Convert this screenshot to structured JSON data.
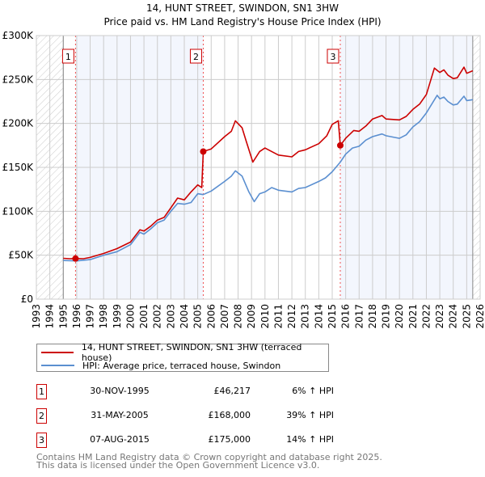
{
  "chart_data": {
    "type": "line",
    "title": "14, HUNT STREET, SWINDON, SN1 3HW",
    "subtitle": "Price paid vs. HM Land Registry's House Price Index (HPI)",
    "xlim": [
      1993,
      2026
    ],
    "ylim": [
      0,
      300000
    ],
    "x_ticks": [
      "1993",
      "1994",
      "1995",
      "1996",
      "1997",
      "1998",
      "1999",
      "2000",
      "2001",
      "2002",
      "2003",
      "2004",
      "2005",
      "2006",
      "2007",
      "2008",
      "2009",
      "2010",
      "2011",
      "2012",
      "2013",
      "2014",
      "2015",
      "2016",
      "2017",
      "2018",
      "2019",
      "2020",
      "2021",
      "2022",
      "2023",
      "2024",
      "2025",
      "2026"
    ],
    "y_ticks": [
      {
        "v": 0,
        "label": "£0"
      },
      {
        "v": 50000,
        "label": "£50K"
      },
      {
        "v": 100000,
        "label": "£100K"
      },
      {
        "v": 150000,
        "label": "£150K"
      },
      {
        "v": 200000,
        "label": "£200K"
      },
      {
        "v": 250000,
        "label": "£250K"
      },
      {
        "v": 300000,
        "label": "£300K"
      }
    ],
    "grid": true,
    "data_range": [
      1995,
      2025.45
    ],
    "series": [
      {
        "name": "14, HUNT STREET, SWINDON, SN1 3HW (terraced house)",
        "color": "#cc0000",
        "points": [
          [
            1995,
            46500
          ],
          [
            1995.5,
            46000
          ],
          [
            1995.91,
            46217
          ],
          [
            1996.5,
            46000
          ],
          [
            1997,
            47500
          ],
          [
            1998,
            52000
          ],
          [
            1999,
            57500
          ],
          [
            2000,
            65000
          ],
          [
            2000.7,
            79000
          ],
          [
            2001,
            77500
          ],
          [
            2001.5,
            83000
          ],
          [
            2002,
            90000
          ],
          [
            2002.5,
            93000
          ],
          [
            2003,
            104000
          ],
          [
            2003.5,
            115000
          ],
          [
            2004,
            113000
          ],
          [
            2004.5,
            122000
          ],
          [
            2005,
            130000
          ],
          [
            2005.3,
            127000
          ],
          [
            2005.41,
            168000
          ],
          [
            2006,
            171000
          ],
          [
            2007,
            185000
          ],
          [
            2007.5,
            191000
          ],
          [
            2007.8,
            203000
          ],
          [
            2008.3,
            195000
          ],
          [
            2008.6,
            180000
          ],
          [
            2009.1,
            156000
          ],
          [
            2009.6,
            168000
          ],
          [
            2010,
            172000
          ],
          [
            2010.5,
            168000
          ],
          [
            2011,
            164000
          ],
          [
            2012,
            162000
          ],
          [
            2012.5,
            168000
          ],
          [
            2013,
            170000
          ],
          [
            2014,
            177000
          ],
          [
            2014.6,
            186000
          ],
          [
            2015,
            199000
          ],
          [
            2015.45,
            203000
          ],
          [
            2015.6,
            175000
          ],
          [
            2016,
            183000
          ],
          [
            2016.6,
            192000
          ],
          [
            2017,
            191000
          ],
          [
            2017.5,
            197000
          ],
          [
            2018,
            205000
          ],
          [
            2018.7,
            209000
          ],
          [
            2019,
            205000
          ],
          [
            2020,
            204000
          ],
          [
            2020.5,
            208000
          ],
          [
            2021,
            216000
          ],
          [
            2021.5,
            222000
          ],
          [
            2022,
            233000
          ],
          [
            2022.6,
            263000
          ],
          [
            2023,
            258000
          ],
          [
            2023.3,
            261000
          ],
          [
            2023.6,
            255000
          ],
          [
            2024,
            251000
          ],
          [
            2024.3,
            252000
          ],
          [
            2024.8,
            264000
          ],
          [
            2025,
            257000
          ],
          [
            2025.45,
            260000
          ]
        ]
      },
      {
        "name": "HPI: Average price, terraced house, Swindon",
        "color": "#5b8fd0",
        "points": [
          [
            1995,
            44000
          ],
          [
            1996,
            43500
          ],
          [
            1997,
            45000
          ],
          [
            1998,
            50000
          ],
          [
            1999,
            54000
          ],
          [
            2000,
            62000
          ],
          [
            2000.7,
            76000
          ],
          [
            2001,
            74000
          ],
          [
            2001.5,
            80000
          ],
          [
            2002,
            87000
          ],
          [
            2002.5,
            90000
          ],
          [
            2003,
            100000
          ],
          [
            2003.5,
            109000
          ],
          [
            2004,
            108000
          ],
          [
            2004.5,
            110000
          ],
          [
            2005,
            120000
          ],
          [
            2005.4,
            119000
          ],
          [
            2006,
            123000
          ],
          [
            2007,
            134000
          ],
          [
            2007.5,
            140000
          ],
          [
            2007.8,
            146000
          ],
          [
            2008.3,
            140000
          ],
          [
            2008.8,
            122000
          ],
          [
            2009.2,
            111000
          ],
          [
            2009.6,
            120000
          ],
          [
            2010,
            122000
          ],
          [
            2010.5,
            127000
          ],
          [
            2011,
            124000
          ],
          [
            2012,
            122000
          ],
          [
            2012.5,
            126000
          ],
          [
            2013,
            127000
          ],
          [
            2014,
            134000
          ],
          [
            2014.5,
            138000
          ],
          [
            2015,
            145000
          ],
          [
            2015.6,
            156000
          ],
          [
            2016,
            165000
          ],
          [
            2016.5,
            172000
          ],
          [
            2017,
            174000
          ],
          [
            2017.5,
            181000
          ],
          [
            2018,
            185000
          ],
          [
            2018.7,
            188000
          ],
          [
            2019,
            186000
          ],
          [
            2020,
            183000
          ],
          [
            2020.5,
            187000
          ],
          [
            2021,
            196000
          ],
          [
            2021.5,
            202000
          ],
          [
            2022,
            212000
          ],
          [
            2022.8,
            232000
          ],
          [
            2023,
            228000
          ],
          [
            2023.3,
            230000
          ],
          [
            2023.6,
            225000
          ],
          [
            2024,
            221000
          ],
          [
            2024.3,
            222000
          ],
          [
            2024.8,
            231000
          ],
          [
            2025,
            226000
          ],
          [
            2025.45,
            227000
          ]
        ]
      }
    ],
    "sales": [
      {
        "id": "1",
        "x": 1995.91,
        "y": 46217
      },
      {
        "id": "2",
        "x": 2005.41,
        "y": 168000
      },
      {
        "id": "3",
        "x": 2015.6,
        "y": 175000
      }
    ]
  },
  "legend": {
    "property": "14, HUNT STREET, SWINDON, SN1 3HW (terraced house)",
    "hpi": "HPI: Average price, terraced house, Swindon",
    "property_color": "#cc0000",
    "hpi_color": "#5b8fd0"
  },
  "transactions": [
    {
      "id": "1",
      "date": "30-NOV-1995",
      "price": "£46,217",
      "hpi": "6% ↑ HPI"
    },
    {
      "id": "2",
      "date": "31-MAY-2005",
      "price": "£168,000",
      "hpi": "39% ↑ HPI"
    },
    {
      "id": "3",
      "date": "07-AUG-2015",
      "price": "£175,000",
      "hpi": "14% ↑ HPI"
    }
  ],
  "footer": {
    "line1": "Contains HM Land Registry data © Crown copyright and database right 2025.",
    "line2": "This data is licensed under the Open Government Licence v3.0."
  }
}
